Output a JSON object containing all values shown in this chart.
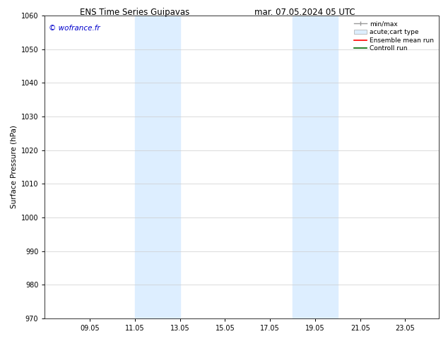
{
  "title_left": "ENS Time Series Guipavas",
  "title_right": "mar. 07.05.2024 05 UTC",
  "ylabel": "Surface Pressure (hPa)",
  "ylim": [
    970,
    1060
  ],
  "yticks": [
    970,
    980,
    990,
    1000,
    1010,
    1020,
    1030,
    1040,
    1050,
    1060
  ],
  "xlim_start": 7.0,
  "xlim_end": 24.5,
  "xtick_labels": [
    "09.05",
    "11.05",
    "13.05",
    "15.05",
    "17.05",
    "19.05",
    "21.05",
    "23.05"
  ],
  "xtick_positions": [
    9.0,
    11.0,
    13.0,
    15.0,
    17.0,
    19.0,
    21.0,
    23.0
  ],
  "shade_bands": [
    {
      "x_start": 11.0,
      "x_end": 13.0
    },
    {
      "x_start": 18.0,
      "x_end": 20.0
    }
  ],
  "shade_color": "#ddeeff",
  "watermark": "© wofrance.fr",
  "watermark_color": "#0000cc",
  "bg_color": "#ffffff",
  "grid_color": "#cccccc",
  "title_fontsize": 8.5,
  "label_fontsize": 7.5,
  "tick_fontsize": 7,
  "legend_fontsize": 6.5
}
